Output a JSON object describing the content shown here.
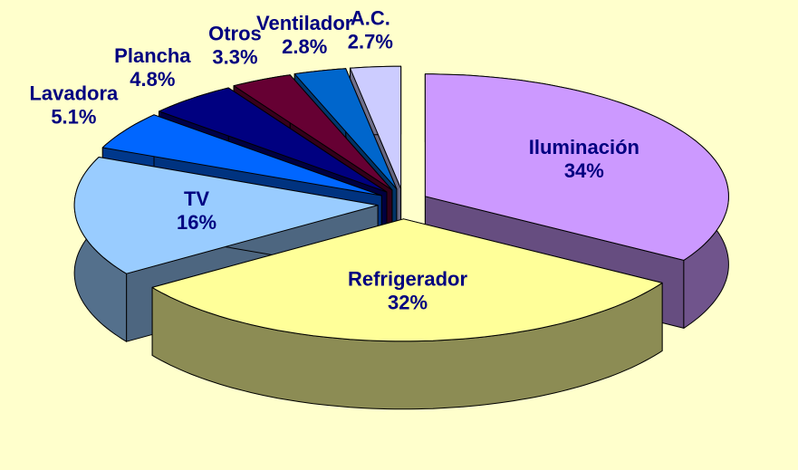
{
  "chart_data": {
    "type": "pie3d",
    "categories": [
      "Iluminación",
      "Refrigerador",
      "TV",
      "Lavadora",
      "Plancha",
      "Otros",
      "Ventilador",
      "A.C."
    ],
    "values": [
      34,
      32,
      16,
      5.1,
      4.8,
      3.3,
      2.8,
      2.7
    ],
    "value_labels": [
      "34%",
      "32%",
      "16%",
      "5.1%",
      "4.8%",
      "3.3%",
      "2.8%",
      "2.7%"
    ],
    "colors": [
      "#cc99ff",
      "#ffff99",
      "#99ccff",
      "#0066ff",
      "#000080",
      "#660033",
      "#0066cc",
      "#ccccff"
    ]
  }
}
